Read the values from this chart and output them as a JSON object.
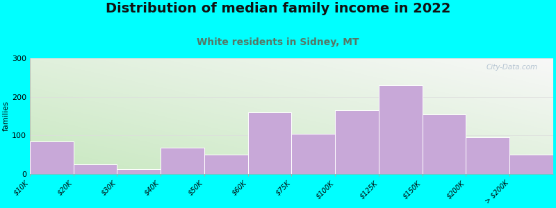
{
  "title": "Distribution of median family income in 2022",
  "subtitle": "White residents in Sidney, MT",
  "ylabel": "families",
  "categories": [
    "$10K",
    "$20K",
    "$30K",
    "$40K",
    "$50K",
    "$60K",
    "$75K",
    "$100K",
    "$125K",
    "$150K",
    "$200K",
    "> $200K"
  ],
  "values": [
    85,
    25,
    12,
    68,
    50,
    160,
    105,
    165,
    230,
    155,
    95,
    50
  ],
  "bar_color": "#c8a8d8",
  "bar_edge_color": "#ffffff",
  "ylim": [
    0,
    300
  ],
  "yticks": [
    0,
    100,
    200,
    300
  ],
  "background_outer": "#00ffff",
  "bg_color_top_left": "#c8e8c0",
  "bg_color_bottom_right": "#f8f8f8",
  "title_fontsize": 14,
  "subtitle_fontsize": 10,
  "subtitle_color": "#557766",
  "ylabel_fontsize": 8,
  "tick_label_fontsize": 7,
  "watermark_text": "City-Data.com",
  "watermark_color": "#aabbcc"
}
